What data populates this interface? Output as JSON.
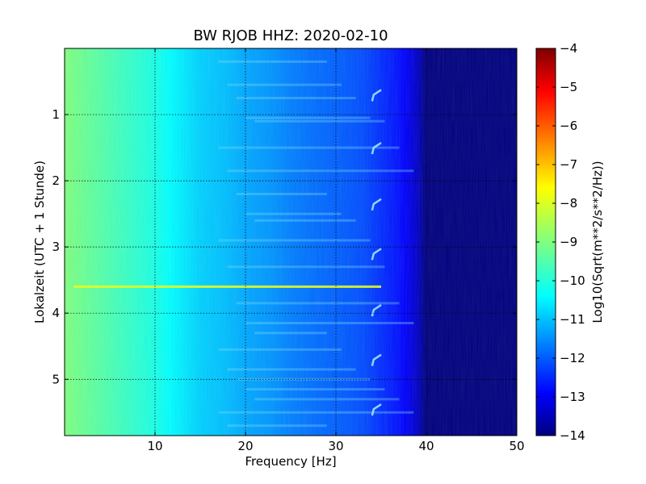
{
  "chart_data": {
    "type": "heatmap",
    "title": "BW RJOB HHZ: 2020-02-10",
    "xlabel": "Frequency [Hz]",
    "ylabel": "Lokalzeit (UTC + 1 Stunde)",
    "xlim": [
      0,
      50
    ],
    "ylim": [
      5.85,
      0
    ],
    "x_ticks": [
      10,
      20,
      30,
      40,
      50
    ],
    "y_ticks": [
      1,
      2,
      3,
      4,
      5
    ],
    "grid": true,
    "colormap": "jet",
    "colorbar": {
      "label": "Log10(Sqrt(m**2/s**2/Hz))",
      "range": [
        -14,
        -4
      ],
      "ticks": [
        -4,
        -5,
        -6,
        -7,
        -8,
        -9,
        -10,
        -11,
        -12,
        -13,
        -14
      ]
    },
    "spectral_profile": {
      "frequency_hz": [
        0,
        2,
        5,
        8,
        10,
        12,
        15,
        18,
        20,
        23,
        25,
        28,
        30,
        33,
        35,
        37,
        38,
        39,
        40,
        50
      ],
      "log10_amplitude": [
        -9.0,
        -9.2,
        -9.5,
        -9.8,
        -10.0,
        -10.3,
        -10.7,
        -10.9,
        -11.1,
        -11.3,
        -11.5,
        -11.7,
        -11.8,
        -12.0,
        -12.3,
        -12.6,
        -12.9,
        -13.3,
        -14.0,
        -14.0
      ]
    },
    "annotations": [
      {
        "type": "horizontal_line",
        "time_h": 3.6,
        "freq_range_hz": [
          1,
          35
        ],
        "log10_amplitude": -8.0
      }
    ]
  },
  "colors": {
    "jet": [
      "#00007f",
      "#0000ff",
      "#007fff",
      "#00ffff",
      "#7fff7f",
      "#ffff00",
      "#ff7f00",
      "#ff0000",
      "#7f0000"
    ]
  }
}
